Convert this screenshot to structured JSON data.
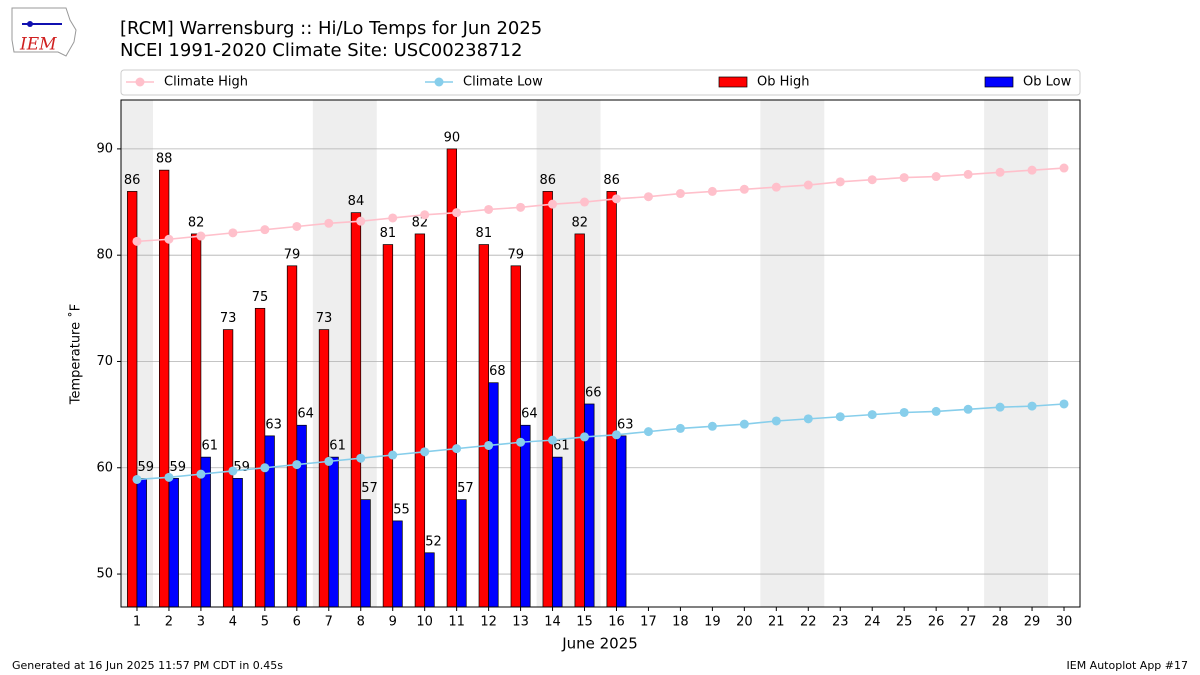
{
  "logo_text": "IEM",
  "chart_data": {
    "type": "bar",
    "title": "[RCM] Warrensburg :: Hi/Lo Temps for Jun 2025",
    "subtitle": "NCEI 1991-2020 Climate Site: USC00238712",
    "xlabel": "June 2025",
    "ylabel": "Temperature ˚F",
    "footer_left": "Generated at 16 Jun 2025 11:57 PM CDT in 0.45s",
    "footer_right": "IEM Autoplot App #17",
    "x": [
      1,
      2,
      3,
      4,
      5,
      6,
      7,
      8,
      9,
      10,
      11,
      12,
      13,
      14,
      15,
      16,
      17,
      18,
      19,
      20,
      21,
      22,
      23,
      24,
      25,
      26,
      27,
      28,
      29,
      30
    ],
    "xlim": [
      0.5,
      30.5
    ],
    "xticks": [
      1,
      2,
      3,
      4,
      5,
      6,
      7,
      8,
      9,
      10,
      11,
      12,
      13,
      14,
      15,
      16,
      17,
      18,
      19,
      20,
      21,
      22,
      23,
      24,
      25,
      26,
      27,
      28,
      29,
      30
    ],
    "ylim": [
      46.9,
      94.6
    ],
    "yticks": [
      50,
      60,
      70,
      80,
      90
    ],
    "grid": true,
    "legend": "top",
    "shaded_ranges": [
      [
        0.5,
        1.5
      ],
      [
        6.5,
        8.5
      ],
      [
        13.5,
        15.5
      ],
      [
        20.5,
        22.5
      ],
      [
        27.5,
        29.5
      ]
    ],
    "shade_color": "#eeeeee",
    "series": [
      {
        "name": "Climate High",
        "type": "line",
        "color": "#ffc0cb",
        "values": [
          81.3,
          81.5,
          81.8,
          82.1,
          82.4,
          82.7,
          83.0,
          83.2,
          83.5,
          83.8,
          84.0,
          84.3,
          84.5,
          84.8,
          85.0,
          85.3,
          85.5,
          85.8,
          86.0,
          86.2,
          86.4,
          86.6,
          86.9,
          87.1,
          87.3,
          87.4,
          87.6,
          87.8,
          88.0,
          88.2
        ]
      },
      {
        "name": "Climate Low",
        "type": "line",
        "color": "#87ceeb",
        "values": [
          58.9,
          59.1,
          59.4,
          59.7,
          60.0,
          60.3,
          60.6,
          60.9,
          61.2,
          61.5,
          61.8,
          62.1,
          62.4,
          62.6,
          62.9,
          63.1,
          63.4,
          63.7,
          63.9,
          64.1,
          64.4,
          64.6,
          64.8,
          65.0,
          65.2,
          65.3,
          65.5,
          65.7,
          65.8,
          66.0
        ]
      },
      {
        "name": "Ob High",
        "type": "bar",
        "color": "#ff0000",
        "values": [
          86,
          88,
          82,
          73,
          75,
          79,
          73,
          84,
          81,
          82,
          90,
          81,
          79,
          86,
          82,
          86,
          null,
          null,
          null,
          null,
          null,
          null,
          null,
          null,
          null,
          null,
          null,
          null,
          null,
          null
        ]
      },
      {
        "name": "Ob Low",
        "type": "bar",
        "color": "#0000ff",
        "values": [
          59,
          59,
          61,
          59,
          63,
          64,
          61,
          57,
          55,
          52,
          57,
          68,
          64,
          61,
          66,
          63,
          null,
          null,
          null,
          null,
          null,
          null,
          null,
          null,
          null,
          null,
          null,
          null,
          null,
          null
        ]
      }
    ]
  }
}
